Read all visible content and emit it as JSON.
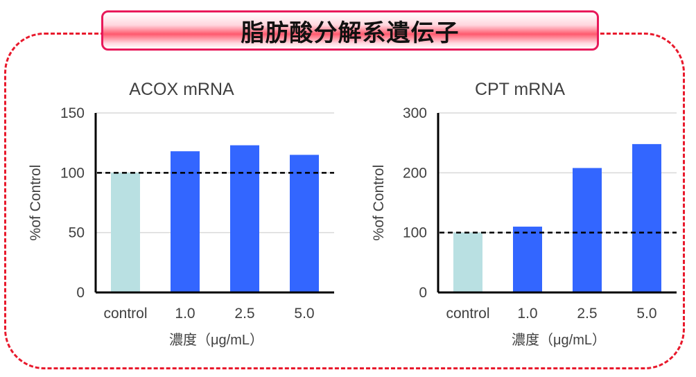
{
  "banner_title": "脂肪酸分解系遺伝子",
  "colors": {
    "control": "#b9e0e2",
    "treated": "#3366ff",
    "frame": "#e8192c",
    "refline": "#000000"
  },
  "chart_data": [
    {
      "type": "bar",
      "title": "ACOX mRNA",
      "categories": [
        "control",
        "1.0",
        "2.5",
        "5.0"
      ],
      "values": [
        100,
        118,
        123,
        115
      ],
      "xlabel": "濃度（μg/mL）",
      "ylabel": "%of Control",
      "ylim": [
        0,
        150
      ],
      "yticks": [
        0,
        50,
        100,
        150
      ],
      "reference_line": 100,
      "grid": true
    },
    {
      "type": "bar",
      "title": "CPT mRNA",
      "categories": [
        "control",
        "1.0",
        "2.5",
        "5.0"
      ],
      "values": [
        100,
        110,
        208,
        248
      ],
      "xlabel": "濃度（μg/mL）",
      "ylabel": "%of Control",
      "ylim": [
        0,
        300
      ],
      "yticks": [
        0,
        100,
        200,
        300
      ],
      "reference_line": 100,
      "grid": true
    }
  ]
}
